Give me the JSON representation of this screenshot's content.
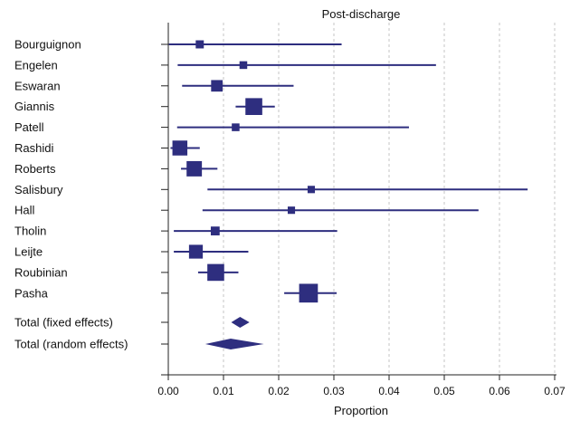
{
  "chart_data": {
    "type": "forest",
    "title": "Post-discharge",
    "xlabel": "Proportion",
    "xlim": [
      0,
      0.07
    ],
    "xticks": [
      0,
      0.01,
      0.02,
      0.03,
      0.04,
      0.05,
      0.06,
      0.07
    ],
    "xtick_labels": [
      "0.00",
      "0.01",
      "0.02",
      "0.03",
      "0.04",
      "0.05",
      "0.06",
      "0.07"
    ],
    "grid": "vertical dashed",
    "color": "#2e2e7f",
    "studies": [
      {
        "name": "Bourguignon",
        "estimate": 0.0057,
        "lower": 0.0001,
        "upper": 0.0314,
        "weight": 0.7
      },
      {
        "name": "Engelen",
        "estimate": 0.0136,
        "lower": 0.0017,
        "upper": 0.0485,
        "weight": 0.6
      },
      {
        "name": "Eswaran",
        "estimate": 0.0088,
        "lower": 0.0025,
        "upper": 0.0227,
        "weight": 1.6
      },
      {
        "name": "Giannis",
        "estimate": 0.0155,
        "lower": 0.0122,
        "upper": 0.0193,
        "weight": 3.0
      },
      {
        "name": "Patell",
        "estimate": 0.0122,
        "lower": 0.0016,
        "upper": 0.0436,
        "weight": 0.6
      },
      {
        "name": "Rashidi",
        "estimate": 0.0021,
        "lower": 0.0004,
        "upper": 0.0057,
        "weight": 2.5
      },
      {
        "name": "Roberts",
        "estimate": 0.0047,
        "lower": 0.0023,
        "upper": 0.0089,
        "weight": 2.6
      },
      {
        "name": "Salisbury",
        "estimate": 0.0259,
        "lower": 0.0071,
        "upper": 0.0651,
        "weight": 0.5
      },
      {
        "name": "Hall",
        "estimate": 0.0223,
        "lower": 0.0062,
        "upper": 0.0562,
        "weight": 0.5
      },
      {
        "name": "Tholin",
        "estimate": 0.0085,
        "lower": 0.001,
        "upper": 0.0306,
        "weight": 0.9
      },
      {
        "name": "Leijte",
        "estimate": 0.005,
        "lower": 0.001,
        "upper": 0.0145,
        "weight": 2.2
      },
      {
        "name": "Roubinian",
        "estimate": 0.0086,
        "lower": 0.0054,
        "upper": 0.0127,
        "weight": 3.0
      },
      {
        "name": "Pasha",
        "estimate": 0.0254,
        "lower": 0.021,
        "upper": 0.0305,
        "weight": 3.5
      }
    ],
    "pooled": [
      {
        "name": "Total (fixed effects)",
        "estimate": 0.013,
        "lower": 0.0114,
        "upper": 0.0147
      },
      {
        "name": "Total (random effects)",
        "estimate": 0.0113,
        "lower": 0.0067,
        "upper": 0.0173
      }
    ]
  }
}
